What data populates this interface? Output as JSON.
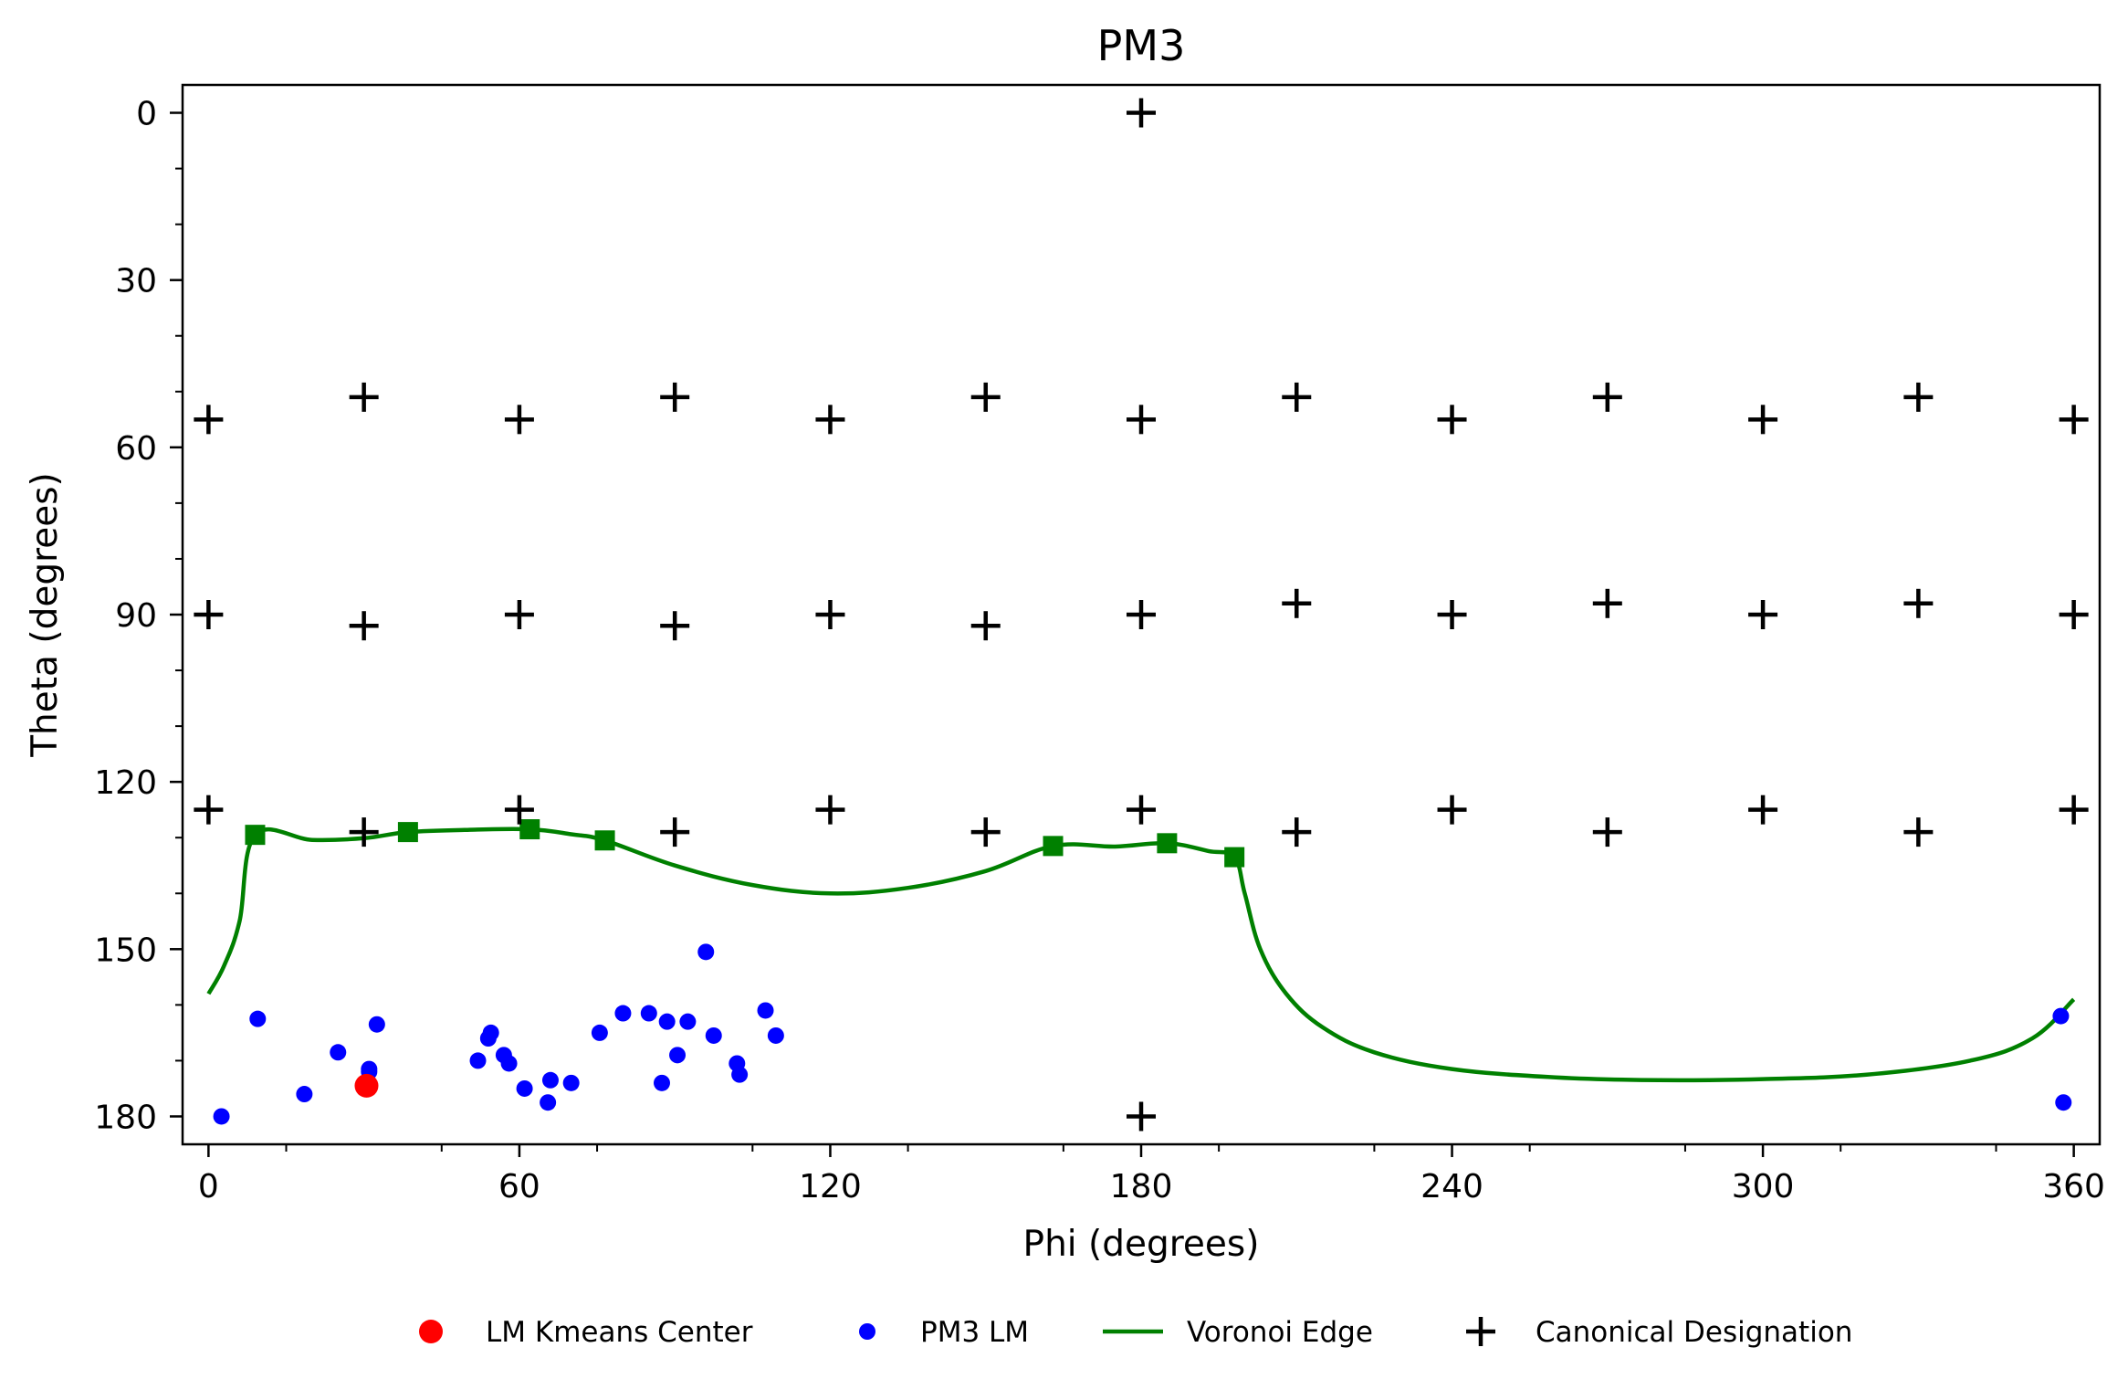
{
  "chart_data": {
    "type": "scatter",
    "title": "PM3",
    "xlabel": "Phi (degrees)",
    "ylabel": "Theta (degrees)",
    "xlim": [
      -5,
      365
    ],
    "ylim": [
      185,
      -5
    ],
    "y_inverted": true,
    "x_ticks": [
      "0",
      "60",
      "120",
      "180",
      "240",
      "300",
      "360"
    ],
    "y_ticks": [
      "0",
      "30",
      "60",
      "90",
      "120",
      "150",
      "180"
    ],
    "grid": false,
    "legend_position": "bottom-center",
    "colors": {
      "kmeans": "#ff0000",
      "lm": "#0000ff",
      "voronoi": "#008000",
      "canonical": "#000000"
    },
    "legend": [
      {
        "label": "LM Kmeans Center",
        "marker": "circle",
        "color": "#ff0000"
      },
      {
        "label": "PM3 LM",
        "marker": "small-circle",
        "color": "#0000ff"
      },
      {
        "label": "Voronoi Edge",
        "marker": "line",
        "color": "#008000"
      },
      {
        "label": "Canonical Designation",
        "marker": "plus",
        "color": "#000000"
      }
    ],
    "series": {
      "kmeans_center": [
        [
          30.5,
          174.5
        ]
      ],
      "pm3_lm": [
        [
          2.5,
          180
        ],
        [
          9.5,
          162.5
        ],
        [
          18.5,
          176
        ],
        [
          25,
          168.5
        ],
        [
          31,
          171.5
        ],
        [
          32.5,
          163.5
        ],
        [
          31,
          172
        ],
        [
          52,
          170
        ],
        [
          54,
          166
        ],
        [
          54.5,
          165
        ],
        [
          57,
          169
        ],
        [
          58,
          170.5
        ],
        [
          61,
          175
        ],
        [
          65.5,
          177.5
        ],
        [
          66,
          173.5
        ],
        [
          70,
          174
        ],
        [
          75.5,
          165
        ],
        [
          80,
          161.5
        ],
        [
          85,
          161.5
        ],
        [
          87.5,
          174
        ],
        [
          88.5,
          163
        ],
        [
          90.5,
          169
        ],
        [
          92.5,
          163
        ],
        [
          96,
          150.5
        ],
        [
          97.5,
          165.5
        ],
        [
          102,
          170.5
        ],
        [
          102.5,
          172.5
        ],
        [
          107.5,
          161
        ],
        [
          109.5,
          165.5
        ],
        [
          357.5,
          162
        ],
        [
          358,
          177.5
        ]
      ],
      "voronoi_vertices": [
        [
          9,
          129.5
        ],
        [
          38.5,
          129
        ],
        [
          62,
          128.5
        ],
        [
          76.5,
          130.5
        ],
        [
          163,
          131.5
        ],
        [
          185,
          131
        ],
        [
          198,
          133.5
        ]
      ],
      "voronoi_edge": [
        [
          0,
          158
        ],
        [
          3,
          153
        ],
        [
          6,
          145
        ],
        [
          9,
          129.5
        ],
        [
          20,
          130.4
        ],
        [
          30,
          130.1
        ],
        [
          38.5,
          129
        ],
        [
          50,
          128.6
        ],
        [
          62,
          128.5
        ],
        [
          70,
          129.4
        ],
        [
          76.5,
          130.5
        ],
        [
          90,
          135
        ],
        [
          105,
          138.5
        ],
        [
          120,
          140
        ],
        [
          135,
          139
        ],
        [
          150,
          136
        ],
        [
          163,
          131.5
        ],
        [
          175,
          131.6
        ],
        [
          185,
          131
        ],
        [
          193,
          132.4
        ],
        [
          198,
          133.5
        ],
        [
          200,
          140
        ],
        [
          203,
          150
        ],
        [
          208,
          158
        ],
        [
          215,
          164
        ],
        [
          225,
          168.5
        ],
        [
          240,
          171.5
        ],
        [
          260,
          173
        ],
        [
          280,
          173.5
        ],
        [
          300,
          173.3
        ],
        [
          320,
          172.5
        ],
        [
          340,
          170
        ],
        [
          352,
          166
        ],
        [
          360,
          159
        ]
      ],
      "canonical": [
        [
          180,
          0
        ],
        [
          0,
          55
        ],
        [
          30,
          51
        ],
        [
          60,
          55
        ],
        [
          90,
          51
        ],
        [
          120,
          55
        ],
        [
          150,
          51
        ],
        [
          180,
          55
        ],
        [
          210,
          51
        ],
        [
          240,
          55
        ],
        [
          270,
          51
        ],
        [
          300,
          55
        ],
        [
          330,
          51
        ],
        [
          360,
          55
        ],
        [
          0,
          90
        ],
        [
          30,
          92
        ],
        [
          60,
          90
        ],
        [
          90,
          92
        ],
        [
          120,
          90
        ],
        [
          150,
          92
        ],
        [
          180,
          90
        ],
        [
          210,
          88
        ],
        [
          240,
          90
        ],
        [
          270,
          88
        ],
        [
          300,
          90
        ],
        [
          330,
          88
        ],
        [
          360,
          90
        ],
        [
          0,
          125
        ],
        [
          30,
          129
        ],
        [
          60,
          125
        ],
        [
          90,
          129
        ],
        [
          120,
          125
        ],
        [
          150,
          129
        ],
        [
          180,
          125
        ],
        [
          210,
          129
        ],
        [
          240,
          125
        ],
        [
          270,
          129
        ],
        [
          300,
          125
        ],
        [
          330,
          129
        ],
        [
          360,
          125
        ],
        [
          180,
          180
        ]
      ]
    }
  }
}
